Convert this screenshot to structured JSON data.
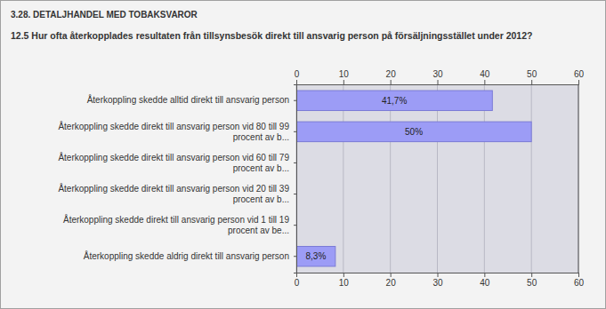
{
  "chart_data": {
    "type": "bar",
    "orientation": "horizontal",
    "title": "3.28. DETALJHANDEL MED TOBAKSVAROR",
    "subtitle": "12.5 Hur ofta återkopplades resultaten från tillsynsbesök direkt till ansvarig person på försäljningsstället under 2012?",
    "categories": [
      "Återkoppling skedde alltid direkt till ansvarig person",
      "Återkoppling skedde direkt till ansvarig person vid 80 till 99 procent av b...",
      "Återkoppling skedde direkt till ansvarig person vid 60 till 79 procent av b...",
      "Återkoppling skedde direkt till ansvarig person vid 20 till 39 procent av b...",
      "Återkoppling skedde direkt till ansvarig person vid 1 till 19 procent av be...",
      "Återkoppling skedde aldrig direkt till ansvarig person"
    ],
    "values": [
      41.7,
      50,
      0,
      0,
      0,
      8.3
    ],
    "value_labels": [
      "41,7%",
      "50%",
      null,
      null,
      null,
      "8,3%"
    ],
    "data_labels": true,
    "color": "#9c9cf6",
    "xlim": [
      0,
      60
    ],
    "xticks": [
      0,
      10,
      20,
      30,
      40,
      50,
      60
    ],
    "grid": true
  }
}
